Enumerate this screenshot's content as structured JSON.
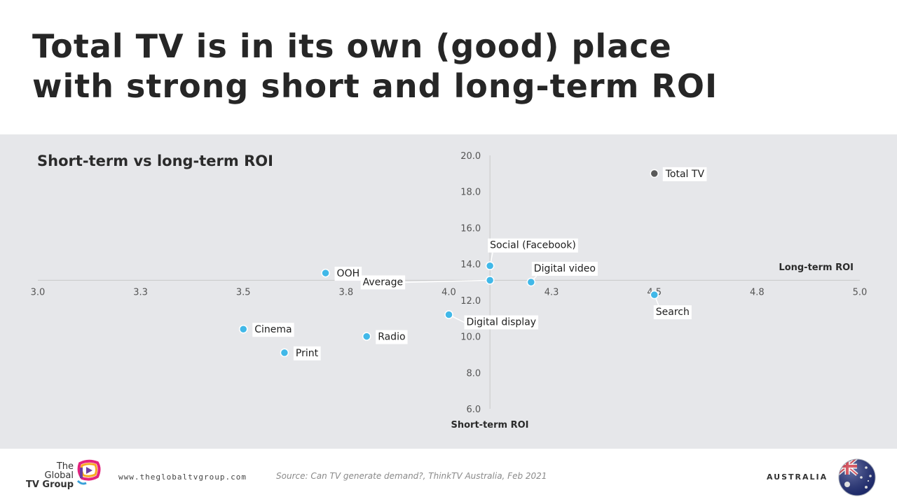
{
  "headline": {
    "line1": "Total TV is in its own (good) place",
    "line2": "with strong short and long-term ROI"
  },
  "chart_data": {
    "type": "scatter",
    "title": "Short-term vs long-term ROI",
    "xlabel": "Long-term ROI",
    "ylabel": "Short-term ROI",
    "xlim": [
      3.0,
      5.0
    ],
    "ylim": [
      6.0,
      20.0
    ],
    "x_ticks": [
      "3.0",
      "3.3",
      "3.5",
      "3.8",
      "4.0",
      "4.3",
      "4.5",
      "4.8",
      "5.0"
    ],
    "y_ticks": [
      "6.0",
      "8.0",
      "10.0",
      "12.0",
      "14.0",
      "16.0",
      "18.0",
      "20.0"
    ],
    "x_axis_crosses_y": 13.1,
    "y_axis_crosses_x": 4.1,
    "grid": false,
    "points": [
      {
        "label": "Total TV",
        "x": 4.5,
        "y": 19.0,
        "color": "#5a5a5a",
        "label_side": "right"
      },
      {
        "label": "Social (Facebook)",
        "x": 4.1,
        "y": 13.9,
        "color": "#41b8e8",
        "label_side": "above"
      },
      {
        "label": "Digital video",
        "x": 4.2,
        "y": 13.0,
        "color": "#41b8e8",
        "label_side": "above-right"
      },
      {
        "label": "Average",
        "x": 4.1,
        "y": 13.1,
        "color": "#41b8e8",
        "label_side": "left"
      },
      {
        "label": "OOH",
        "x": 3.7,
        "y": 13.5,
        "color": "#41b8e8",
        "label_side": "right"
      },
      {
        "label": "Search",
        "x": 4.5,
        "y": 12.3,
        "color": "#41b8e8",
        "label_side": "below"
      },
      {
        "label": "Digital display",
        "x": 4.0,
        "y": 11.2,
        "color": "#41b8e8",
        "label_side": "below-right"
      },
      {
        "label": "Cinema",
        "x": 3.5,
        "y": 10.4,
        "color": "#41b8e8",
        "label_side": "right"
      },
      {
        "label": "Radio",
        "x": 3.8,
        "y": 10.0,
        "color": "#41b8e8",
        "label_side": "right"
      },
      {
        "label": "Print",
        "x": 3.6,
        "y": 9.1,
        "color": "#41b8e8",
        "label_side": "right"
      }
    ]
  },
  "footer": {
    "logo_line1": "The",
    "logo_line2": "Global",
    "logo_line3": "TV Group",
    "url": "www.theglobaltvgroup.com",
    "source": "Source: Can TV generate demand?, ThinkTV Australia, Feb 2021",
    "country": "AUSTRALIA"
  },
  "colors": {
    "panel_bg": "#e6e7ea",
    "point_default": "#41b8e8",
    "point_highlight": "#5a5a5a",
    "axis": "#c8c8c8"
  },
  "icons": {
    "logo": "tv-play-logo-icon",
    "flag": "australia-flag-icon"
  }
}
